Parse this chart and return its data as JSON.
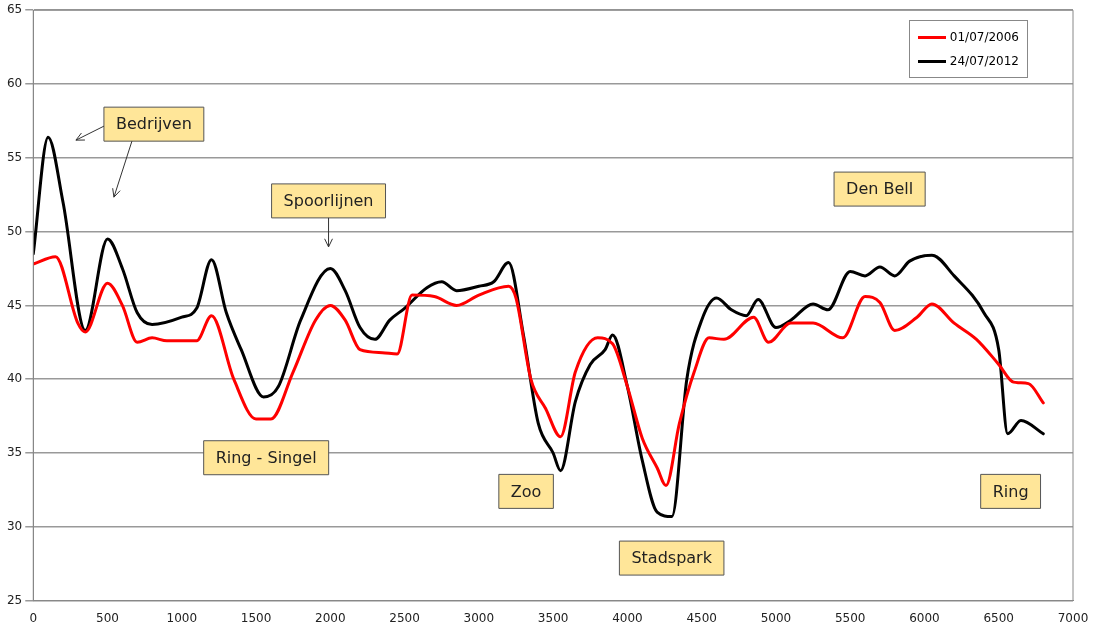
{
  "chart_data": {
    "type": "line",
    "xlim": [
      0,
      7000
    ],
    "xticks": [
      0,
      500,
      1000,
      1500,
      2000,
      2500,
      3000,
      3500,
      4000,
      4500,
      5000,
      5500,
      6000,
      6500,
      7000
    ],
    "ylim": [
      25,
      65
    ],
    "yticks": [
      25,
      30,
      35,
      40,
      45,
      50,
      55,
      60,
      65
    ],
    "grid": "y",
    "legend": "top right",
    "marker": "none",
    "line_style": "solid",
    "series": [
      {
        "name": "01/07/2006",
        "color": "#ff0000",
        "x": [
          0,
          150,
          300,
          350,
          500,
          600,
          700,
          800,
          900,
          1100,
          1200,
          1350,
          1500,
          1600,
          1750,
          1900,
          2000,
          2100,
          2200,
          2350,
          2450,
          2550,
          2700,
          2850,
          3000,
          3200,
          3250,
          3350,
          3450,
          3550,
          3650,
          3800,
          3900,
          4000,
          4100,
          4200,
          4260,
          4350,
          4450,
          4550,
          4650,
          4850,
          4950,
          5100,
          5250,
          5450,
          5600,
          5700,
          5800,
          5950,
          6050,
          6200,
          6350,
          6500,
          6600,
          6700,
          6800
        ],
        "values": [
          47.8,
          48.3,
          43.8,
          43.2,
          46.5,
          45,
          42.5,
          42.8,
          42.6,
          42.6,
          44.3,
          40,
          37.3,
          37.3,
          40.5,
          44,
          45,
          44,
          42,
          41.8,
          41.7,
          45.7,
          45.6,
          45,
          45.7,
          46.3,
          45.5,
          40,
          38,
          36.1,
          40.5,
          42.8,
          42.4,
          39.5,
          36,
          34,
          32.8,
          37,
          40.5,
          42.8,
          42.7,
          44.2,
          42.5,
          43.8,
          43.8,
          42.8,
          45.6,
          45.2,
          43.3,
          44.2,
          45.1,
          43.8,
          42.7,
          41,
          39.8,
          39.7,
          38.4
        ]
      },
      {
        "name": "24/07/2012",
        "color": "#000000",
        "x": [
          0,
          100,
          200,
          350,
          500,
          600,
          700,
          800,
          1000,
          1100,
          1200,
          1300,
          1400,
          1550,
          1650,
          1800,
          2000,
          2100,
          2200,
          2300,
          2400,
          2500,
          2650,
          2750,
          2850,
          3000,
          3100,
          3200,
          3300,
          3400,
          3500,
          3550,
          3650,
          3750,
          3850,
          3900,
          4000,
          4100,
          4200,
          4300,
          4400,
          4500,
          4600,
          4700,
          4800,
          4880,
          5000,
          5100,
          5250,
          5350,
          5500,
          5600,
          5700,
          5800,
          5900,
          6050,
          6200,
          6400,
          6500,
          6560,
          6650,
          6800
        ],
        "values": [
          48.5,
          56.4,
          52,
          43.3,
          49.5,
          47.5,
          44.5,
          43.7,
          44.2,
          44.8,
          48.1,
          44.5,
          42,
          38.8,
          39.5,
          44,
          47.5,
          46,
          43.5,
          42.7,
          44,
          44.8,
          46.2,
          46.6,
          46,
          46.3,
          46.6,
          47.9,
          43,
          37,
          35,
          33.8,
          38.5,
          41,
          42,
          43,
          39.5,
          34.5,
          31,
          30.7,
          40,
          44,
          45.5,
          44.7,
          44.3,
          45.4,
          43.5,
          44,
          45.1,
          44.7,
          47.3,
          47,
          47.6,
          47,
          48,
          48.4,
          47,
          44.5,
          42,
          36.3,
          37.2,
          36.3
        ]
      }
    ],
    "annotations": [
      "Bedrijven",
      "Spoorlijnen",
      "Ring - Singel",
      "Zoo",
      "Stadspark",
      "Den Bell",
      "Ring"
    ]
  }
}
